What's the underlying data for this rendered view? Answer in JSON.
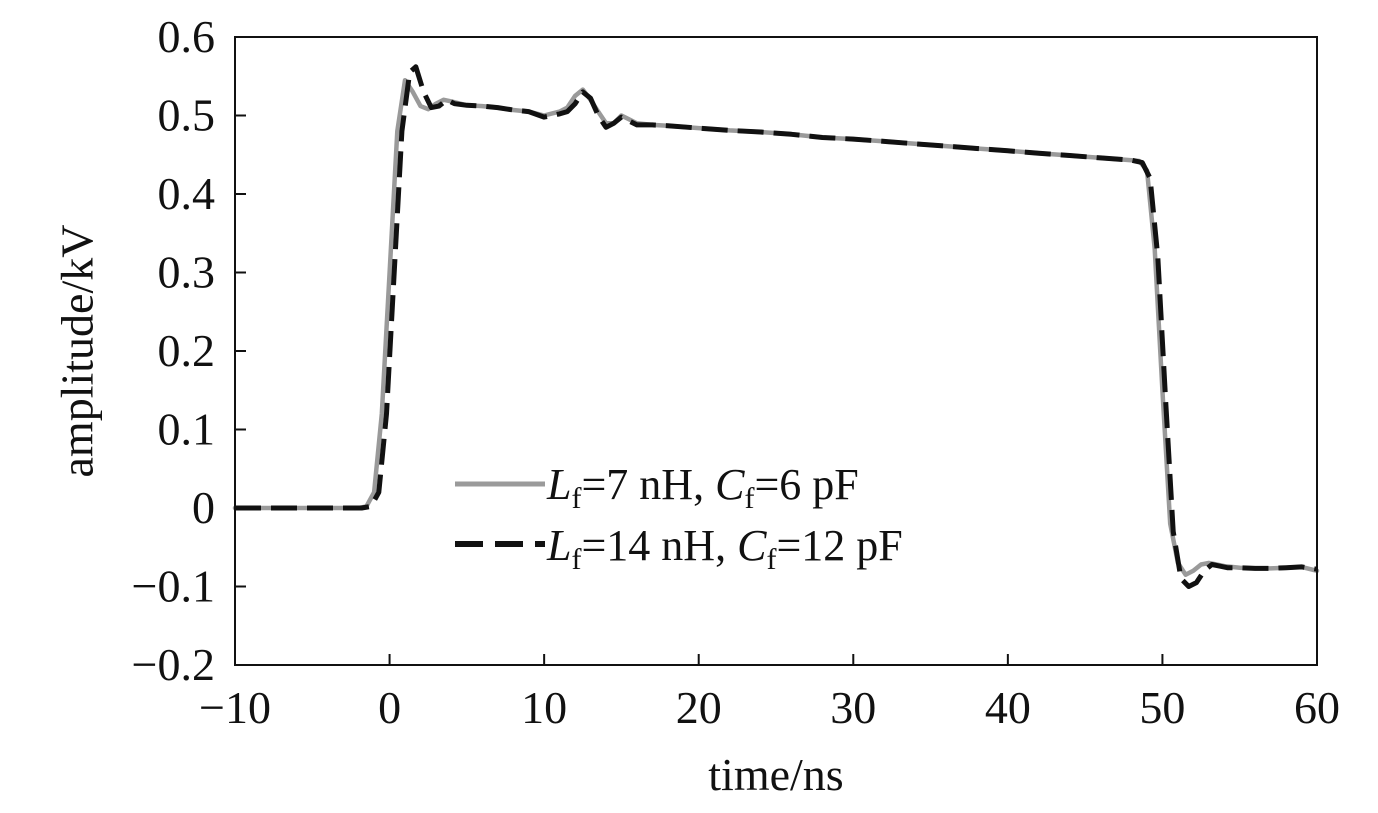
{
  "chart_data": {
    "type": "line",
    "xlabel": "time/ns",
    "ylabel": "amplitude/kV",
    "xlim": [
      -10,
      60
    ],
    "ylim": [
      -0.2,
      0.6
    ],
    "xticks": [
      -10,
      0,
      10,
      20,
      30,
      40,
      50,
      60
    ],
    "yticks": [
      -0.2,
      -0.1,
      0,
      0.1,
      0.2,
      0.3,
      0.4,
      0.5,
      0.6
    ],
    "xtick_labels": [
      "−10",
      "0",
      "10",
      "20",
      "30",
      "40",
      "50",
      "60"
    ],
    "ytick_labels": [
      "−0.2",
      "−0.1",
      "0",
      "0.1",
      "0.2",
      "0.3",
      "0.4",
      "0.5",
      "0.6"
    ],
    "grid": false,
    "legend_position": "center-left",
    "series": [
      {
        "legend": {
          "L": "L",
          "L_sub": "f",
          "L_val": "=7 nH, ",
          "C": "C",
          "C_sub": "f",
          "C_val": "=6 pF"
        },
        "color": "#9a9a9a",
        "style": "solid",
        "x": [
          -10,
          -2,
          -1.5,
          -1.0,
          -0.5,
          0,
          0.5,
          1.0,
          1.5,
          2.0,
          2.5,
          3.0,
          3.5,
          4.0,
          5.0,
          6.0,
          7.0,
          8.0,
          9.0,
          10.0,
          11.0,
          11.5,
          12.0,
          12.5,
          13.0,
          13.5,
          14.0,
          14.5,
          15.0,
          15.5,
          16.0,
          17.0,
          18.0,
          20.0,
          22.0,
          24.0,
          26.0,
          28.0,
          30.0,
          32.0,
          34.0,
          36.0,
          38.0,
          40.0,
          42.0,
          44.0,
          46.0,
          48.0,
          48.5,
          49.0,
          49.5,
          50.0,
          50.5,
          51.0,
          51.5,
          52.0,
          52.5,
          53.0,
          53.5,
          54.0,
          55.0,
          56.0,
          57.0,
          58.0,
          59.0,
          60.0
        ],
        "y": [
          0,
          0,
          0.002,
          0.02,
          0.12,
          0.3,
          0.48,
          0.545,
          0.53,
          0.512,
          0.508,
          0.515,
          0.52,
          0.518,
          0.513,
          0.512,
          0.51,
          0.507,
          0.505,
          0.5,
          0.505,
          0.51,
          0.525,
          0.533,
          0.52,
          0.505,
          0.49,
          0.49,
          0.5,
          0.495,
          0.49,
          0.488,
          0.487,
          0.484,
          0.481,
          0.479,
          0.476,
          0.472,
          0.47,
          0.467,
          0.464,
          0.461,
          0.458,
          0.455,
          0.452,
          0.449,
          0.446,
          0.443,
          0.442,
          0.43,
          0.33,
          0.15,
          -0.02,
          -0.07,
          -0.085,
          -0.08,
          -0.072,
          -0.07,
          -0.072,
          -0.074,
          -0.076,
          -0.077,
          -0.077,
          -0.076,
          -0.075,
          -0.08
        ]
      },
      {
        "legend": {
          "L": "L",
          "L_sub": "f",
          "L_val": "=14 nH, ",
          "C": "C",
          "C_sub": "f",
          "C_val": "=12 pF"
        },
        "color": "#111111",
        "style": "dashed",
        "x": [
          -10,
          -1.8,
          -1.2,
          -0.7,
          -0.2,
          0.3,
          0.8,
          1.3,
          1.7,
          2.2,
          2.7,
          3.2,
          3.7,
          4.2,
          5.0,
          6.0,
          7.0,
          8.0,
          9.0,
          10.0,
          11.0,
          11.5,
          12.0,
          12.5,
          13.0,
          13.5,
          14.0,
          14.5,
          15.0,
          15.5,
          16.0,
          17.0,
          18.0,
          20.0,
          22.0,
          24.0,
          26.0,
          28.0,
          30.0,
          32.0,
          34.0,
          36.0,
          38.0,
          40.0,
          42.0,
          44.0,
          46.0,
          48.0,
          48.7,
          49.2,
          49.7,
          50.2,
          50.7,
          51.2,
          51.7,
          52.2,
          52.7,
          53.2,
          53.7,
          54.2,
          55.0,
          56.0,
          57.0,
          58.0,
          59.0,
          60.0
        ],
        "y": [
          0,
          0,
          0.002,
          0.02,
          0.12,
          0.3,
          0.48,
          0.555,
          0.562,
          0.53,
          0.51,
          0.512,
          0.52,
          0.515,
          0.513,
          0.512,
          0.51,
          0.507,
          0.505,
          0.498,
          0.502,
          0.505,
          0.515,
          0.53,
          0.522,
          0.5,
          0.485,
          0.49,
          0.498,
          0.493,
          0.488,
          0.488,
          0.487,
          0.484,
          0.481,
          0.479,
          0.476,
          0.472,
          0.47,
          0.467,
          0.464,
          0.461,
          0.458,
          0.455,
          0.452,
          0.449,
          0.446,
          0.443,
          0.44,
          0.42,
          0.32,
          0.14,
          -0.03,
          -0.09,
          -0.1,
          -0.095,
          -0.08,
          -0.072,
          -0.074,
          -0.076,
          -0.076,
          -0.077,
          -0.077,
          -0.076,
          -0.075,
          -0.078
        ]
      }
    ]
  }
}
